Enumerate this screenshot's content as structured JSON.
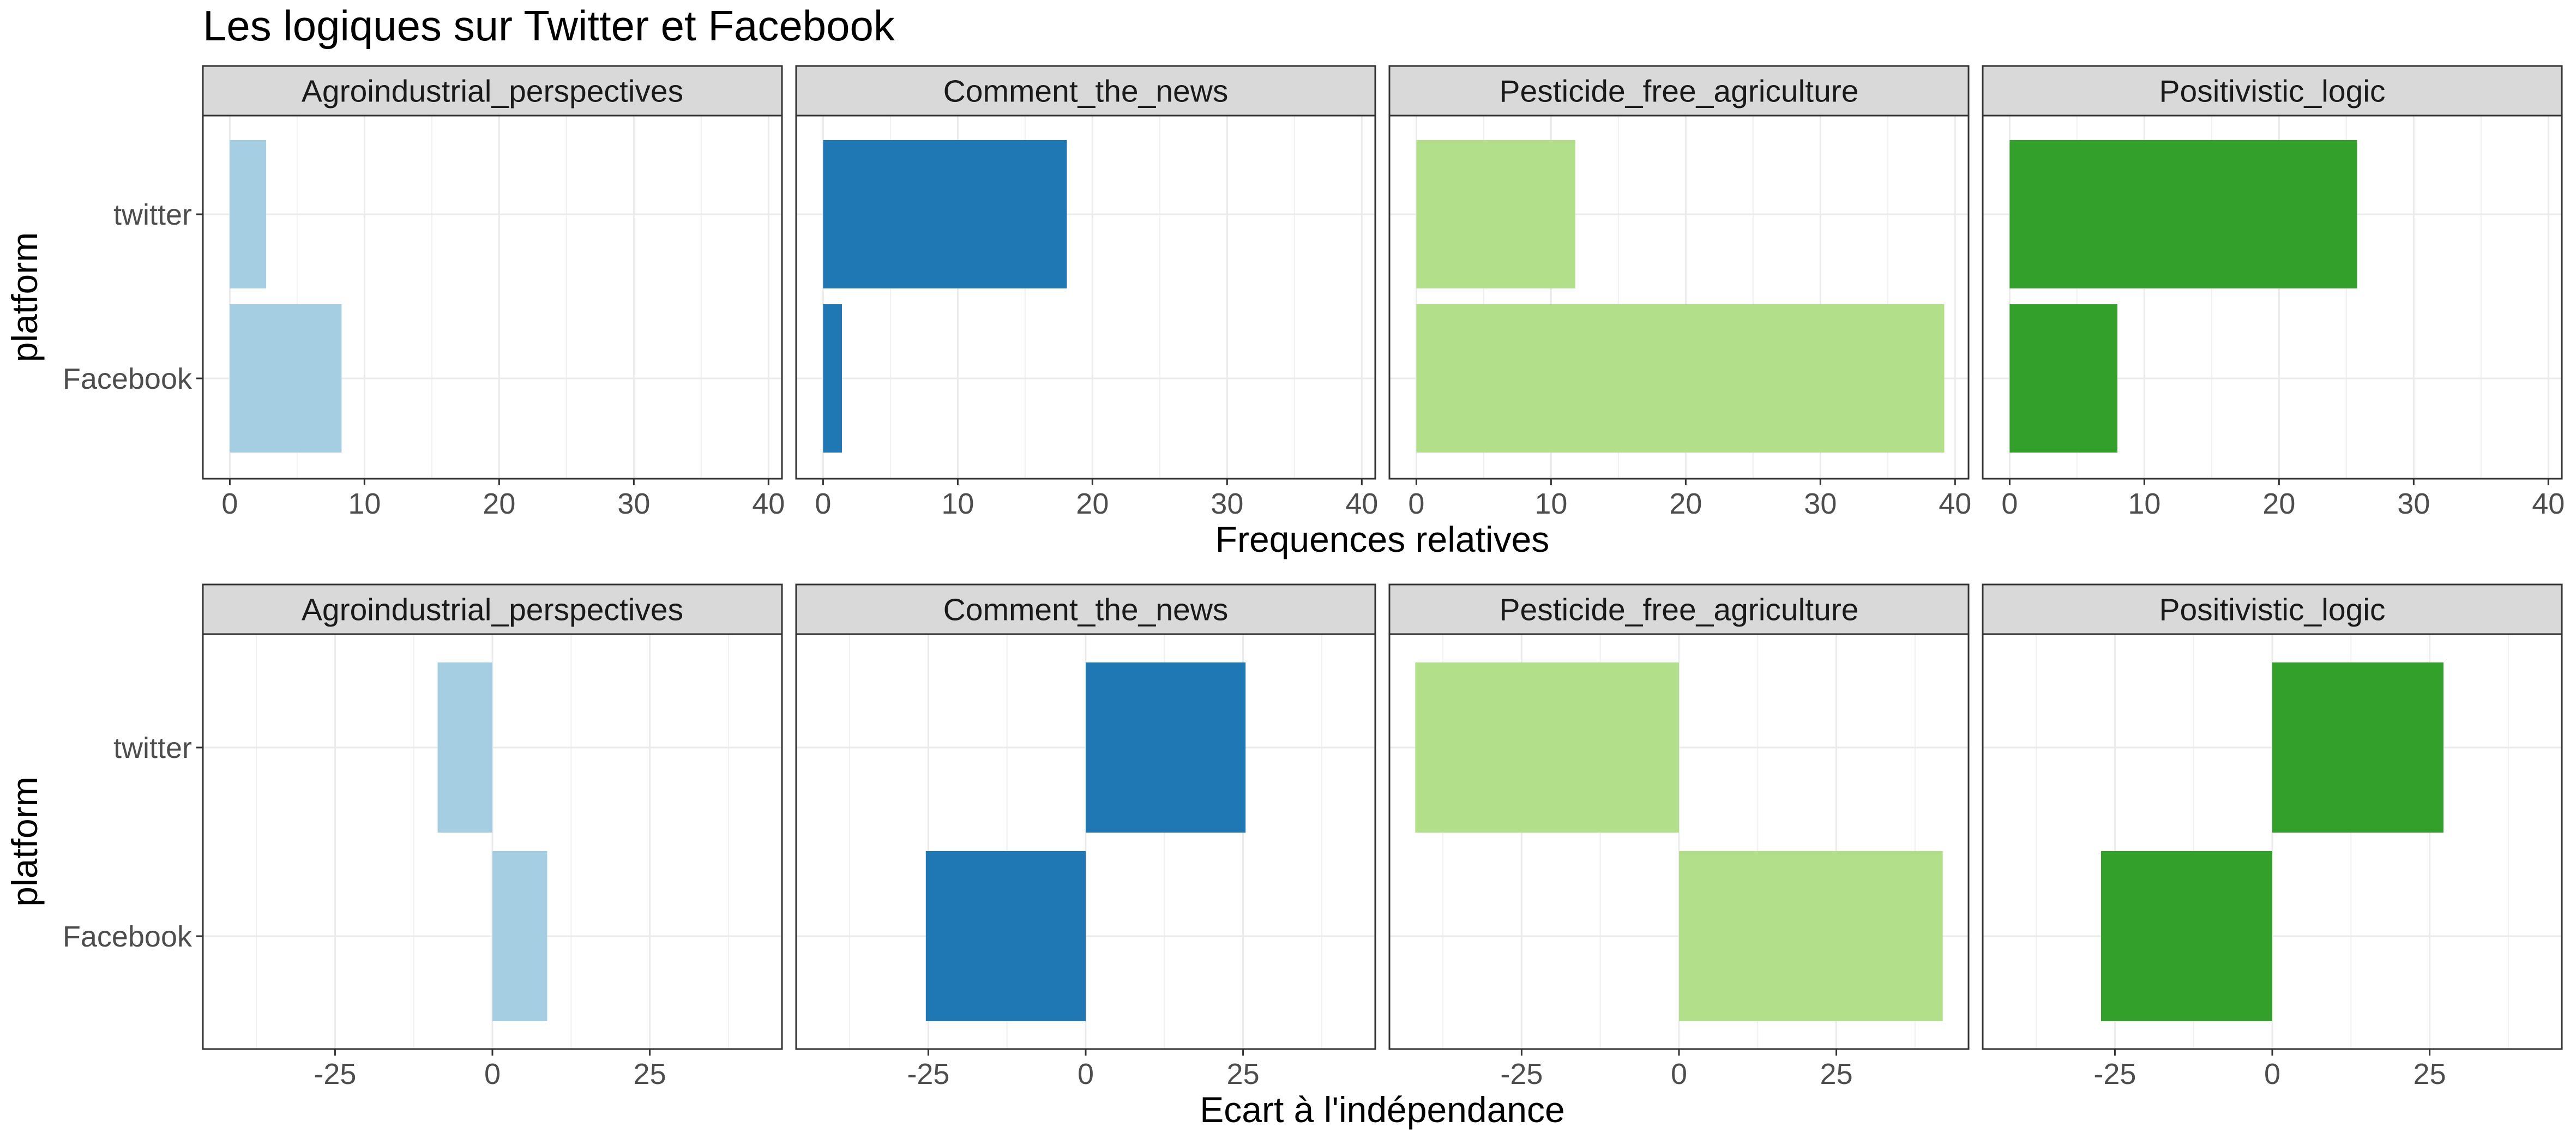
{
  "chart_data": {
    "title": "Les logiques sur Twitter et Facebook",
    "type": "bar",
    "orientation": "horizontal",
    "facets": [
      "Agroindustrial_perspectives",
      "Comment_the_news",
      "Pesticide_free_agriculture",
      "Positivistic_logic"
    ],
    "categories": [
      "twitter",
      "Facebook"
    ],
    "colors": [
      "#A6CEE3",
      "#1F78B4",
      "#B2DF8A",
      "#33A02C"
    ],
    "grid": true,
    "panels": [
      {
        "ylabel": "platform",
        "xlabel": "Frequences relatives",
        "xlim": [
          -2,
          41
        ],
        "xticks": [
          0,
          10,
          20,
          30,
          40
        ],
        "xtick_labels": [
          "0",
          "10",
          "20",
          "30",
          "40"
        ],
        "series": [
          {
            "facet": "Agroindustrial_perspectives",
            "values": [
              2.7,
              8.3
            ]
          },
          {
            "facet": "Comment_the_news",
            "values": [
              18.1,
              1.4
            ]
          },
          {
            "facet": "Pesticide_free_agriculture",
            "values": [
              11.8,
              39.2
            ]
          },
          {
            "facet": "Positivistic_logic",
            "values": [
              25.8,
              8.0
            ]
          }
        ]
      },
      {
        "ylabel": "platform",
        "xlabel": "Ecart à l'indépendance",
        "xlim": [
          -46,
          46
        ],
        "xticks": [
          -25,
          0,
          25
        ],
        "xtick_labels": [
          "-25",
          "0",
          "25"
        ],
        "series": [
          {
            "facet": "Agroindustrial_perspectives",
            "values": [
              -8.7,
              8.7
            ]
          },
          {
            "facet": "Comment_the_news",
            "values": [
              25.4,
              -25.4
            ]
          },
          {
            "facet": "Pesticide_free_agriculture",
            "values": [
              -41.9,
              41.9
            ]
          },
          {
            "facet": "Positivistic_logic",
            "values": [
              27.2,
              -27.2
            ]
          }
        ]
      }
    ]
  }
}
